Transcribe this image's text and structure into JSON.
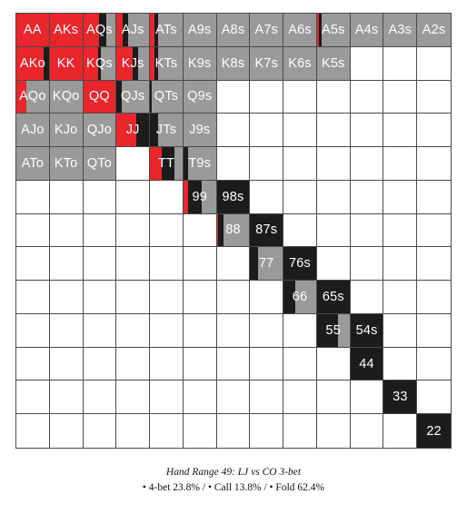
{
  "colors": {
    "raise": "#e8262c",
    "call": "#1c1c1c",
    "fold": "#9a9a9a",
    "empty": "#ffffff"
  },
  "caption": {
    "title": "Hand Range 49: LJ vs CO 3-bet",
    "legend": "• 4-bet 23.8% / • Call 13.8% / • Fold 62.4%"
  },
  "grid": {
    "rows": [
      [
        {
          "label": "AA",
          "raise": 100,
          "call": 0,
          "fold": 0
        },
        {
          "label": "AKs",
          "raise": 100,
          "call": 0,
          "fold": 0
        },
        {
          "label": "AQs",
          "raise": 50,
          "call": 20,
          "fold": 30
        },
        {
          "label": "AJs",
          "raise": 20,
          "call": 15,
          "fold": 65
        },
        {
          "label": "ATs",
          "raise": 15,
          "call": 10,
          "fold": 75
        },
        {
          "label": "A9s",
          "raise": 0,
          "call": 0,
          "fold": 100
        },
        {
          "label": "A8s",
          "raise": 0,
          "call": 0,
          "fold": 100
        },
        {
          "label": "A7s",
          "raise": 0,
          "call": 0,
          "fold": 100
        },
        {
          "label": "A6s",
          "raise": 0,
          "call": 0,
          "fold": 100
        },
        {
          "label": "A5s",
          "raise": 6,
          "call": 8,
          "fold": 86
        },
        {
          "label": "A4s",
          "raise": 0,
          "call": 0,
          "fold": 100
        },
        {
          "label": "A3s",
          "raise": 0,
          "call": 0,
          "fold": 100
        },
        {
          "label": "A2s",
          "raise": 0,
          "call": 0,
          "fold": 100
        }
      ],
      [
        {
          "label": "AKo",
          "raise": 85,
          "call": 15,
          "fold": 0
        },
        {
          "label": "KK",
          "raise": 100,
          "call": 0,
          "fold": 0
        },
        {
          "label": "KQs",
          "raise": 45,
          "call": 10,
          "fold": 45
        },
        {
          "label": "KJs",
          "raise": 50,
          "call": 15,
          "fold": 35
        },
        {
          "label": "KTs",
          "raise": 15,
          "call": 10,
          "fold": 75
        },
        {
          "label": "K9s",
          "raise": 0,
          "call": 0,
          "fold": 100
        },
        {
          "label": "K8s",
          "raise": 0,
          "call": 0,
          "fold": 100
        },
        {
          "label": "K7s",
          "raise": 0,
          "call": 0,
          "fold": 100
        },
        {
          "label": "K6s",
          "raise": 0,
          "call": 0,
          "fold": 100
        },
        {
          "label": "K5s",
          "raise": 0,
          "call": 0,
          "fold": 100
        },
        {
          "label": "",
          "raise": 0,
          "call": 0,
          "fold": 0
        },
        {
          "label": "",
          "raise": 0,
          "call": 0,
          "fold": 0
        },
        {
          "label": "",
          "raise": 0,
          "call": 0,
          "fold": 0
        }
      ],
      [
        {
          "label": "AQo",
          "raise": 30,
          "call": 0,
          "fold": 70
        },
        {
          "label": "KQo",
          "raise": 0,
          "call": 0,
          "fold": 100
        },
        {
          "label": "QQ",
          "raise": 100,
          "call": 0,
          "fold": 0
        },
        {
          "label": "QJs",
          "raise": 0,
          "call": 15,
          "fold": 85
        },
        {
          "label": "QTs",
          "raise": 0,
          "call": 5,
          "fold": 95
        },
        {
          "label": "Q9s",
          "raise": 0,
          "call": 0,
          "fold": 100
        },
        {
          "label": "",
          "raise": 0,
          "call": 0,
          "fold": 0
        },
        {
          "label": "",
          "raise": 0,
          "call": 0,
          "fold": 0
        },
        {
          "label": "",
          "raise": 0,
          "call": 0,
          "fold": 0
        },
        {
          "label": "",
          "raise": 0,
          "call": 0,
          "fold": 0
        },
        {
          "label": "",
          "raise": 0,
          "call": 0,
          "fold": 0
        },
        {
          "label": "",
          "raise": 0,
          "call": 0,
          "fold": 0
        },
        {
          "label": "",
          "raise": 0,
          "call": 0,
          "fold": 0
        }
      ],
      [
        {
          "label": "AJo",
          "raise": 0,
          "call": 0,
          "fold": 100
        },
        {
          "label": "KJo",
          "raise": 0,
          "call": 0,
          "fold": 100
        },
        {
          "label": "QJo",
          "raise": 0,
          "call": 0,
          "fold": 100
        },
        {
          "label": "JJ",
          "raise": 60,
          "call": 40,
          "fold": 0
        },
        {
          "label": "JTs",
          "raise": 0,
          "call": 25,
          "fold": 75
        },
        {
          "label": "J9s",
          "raise": 0,
          "call": 0,
          "fold": 100
        },
        {
          "label": "",
          "raise": 0,
          "call": 0,
          "fold": 0
        },
        {
          "label": "",
          "raise": 0,
          "call": 0,
          "fold": 0
        },
        {
          "label": "",
          "raise": 0,
          "call": 0,
          "fold": 0
        },
        {
          "label": "",
          "raise": 0,
          "call": 0,
          "fold": 0
        },
        {
          "label": "",
          "raise": 0,
          "call": 0,
          "fold": 0
        },
        {
          "label": "",
          "raise": 0,
          "call": 0,
          "fold": 0
        },
        {
          "label": "",
          "raise": 0,
          "call": 0,
          "fold": 0
        }
      ],
      [
        {
          "label": "ATo",
          "raise": 0,
          "call": 0,
          "fold": 100
        },
        {
          "label": "KTo",
          "raise": 0,
          "call": 0,
          "fold": 100
        },
        {
          "label": "QTo",
          "raise": 0,
          "call": 0,
          "fold": 100
        },
        {
          "label": "",
          "raise": 0,
          "call": 0,
          "fold": 0
        },
        {
          "label": "TT",
          "raise": 35,
          "call": 40,
          "fold": 25
        },
        {
          "label": "T9s",
          "raise": 0,
          "call": 15,
          "fold": 85
        },
        {
          "label": "",
          "raise": 0,
          "call": 0,
          "fold": 0
        },
        {
          "label": "",
          "raise": 0,
          "call": 0,
          "fold": 0
        },
        {
          "label": "",
          "raise": 0,
          "call": 0,
          "fold": 0
        },
        {
          "label": "",
          "raise": 0,
          "call": 0,
          "fold": 0
        },
        {
          "label": "",
          "raise": 0,
          "call": 0,
          "fold": 0
        },
        {
          "label": "",
          "raise": 0,
          "call": 0,
          "fold": 0
        },
        {
          "label": "",
          "raise": 0,
          "call": 0,
          "fold": 0
        }
      ],
      [
        {
          "label": "",
          "raise": 0,
          "call": 0,
          "fold": 0
        },
        {
          "label": "",
          "raise": 0,
          "call": 0,
          "fold": 0
        },
        {
          "label": "",
          "raise": 0,
          "call": 0,
          "fold": 0
        },
        {
          "label": "",
          "raise": 0,
          "call": 0,
          "fold": 0
        },
        {
          "label": "",
          "raise": 0,
          "call": 0,
          "fold": 0
        },
        {
          "label": "99",
          "raise": 15,
          "call": 40,
          "fold": 45
        },
        {
          "label": "98s",
          "raise": 0,
          "call": 100,
          "fold": 0
        },
        {
          "label": "",
          "raise": 0,
          "call": 0,
          "fold": 0
        },
        {
          "label": "",
          "raise": 0,
          "call": 0,
          "fold": 0
        },
        {
          "label": "",
          "raise": 0,
          "call": 0,
          "fold": 0
        },
        {
          "label": "",
          "raise": 0,
          "call": 0,
          "fold": 0
        },
        {
          "label": "",
          "raise": 0,
          "call": 0,
          "fold": 0
        },
        {
          "label": "",
          "raise": 0,
          "call": 0,
          "fold": 0
        }
      ],
      [
        {
          "label": "",
          "raise": 0,
          "call": 0,
          "fold": 0
        },
        {
          "label": "",
          "raise": 0,
          "call": 0,
          "fold": 0
        },
        {
          "label": "",
          "raise": 0,
          "call": 0,
          "fold": 0
        },
        {
          "label": "",
          "raise": 0,
          "call": 0,
          "fold": 0
        },
        {
          "label": "",
          "raise": 0,
          "call": 0,
          "fold": 0
        },
        {
          "label": "",
          "raise": 0,
          "call": 0,
          "fold": 0
        },
        {
          "label": "88",
          "raise": 5,
          "call": 15,
          "fold": 80
        },
        {
          "label": "87s",
          "raise": 0,
          "call": 100,
          "fold": 0
        },
        {
          "label": "",
          "raise": 0,
          "call": 0,
          "fold": 0
        },
        {
          "label": "",
          "raise": 0,
          "call": 0,
          "fold": 0
        },
        {
          "label": "",
          "raise": 0,
          "call": 0,
          "fold": 0
        },
        {
          "label": "",
          "raise": 0,
          "call": 0,
          "fold": 0
        },
        {
          "label": "",
          "raise": 0,
          "call": 0,
          "fold": 0
        }
      ],
      [
        {
          "label": "",
          "raise": 0,
          "call": 0,
          "fold": 0
        },
        {
          "label": "",
          "raise": 0,
          "call": 0,
          "fold": 0
        },
        {
          "label": "",
          "raise": 0,
          "call": 0,
          "fold": 0
        },
        {
          "label": "",
          "raise": 0,
          "call": 0,
          "fold": 0
        },
        {
          "label": "",
          "raise": 0,
          "call": 0,
          "fold": 0
        },
        {
          "label": "",
          "raise": 0,
          "call": 0,
          "fold": 0
        },
        {
          "label": "",
          "raise": 0,
          "call": 0,
          "fold": 0
        },
        {
          "label": "77",
          "raise": 0,
          "call": 25,
          "fold": 75
        },
        {
          "label": "76s",
          "raise": 0,
          "call": 100,
          "fold": 0
        },
        {
          "label": "",
          "raise": 0,
          "call": 0,
          "fold": 0
        },
        {
          "label": "",
          "raise": 0,
          "call": 0,
          "fold": 0
        },
        {
          "label": "",
          "raise": 0,
          "call": 0,
          "fold": 0
        },
        {
          "label": "",
          "raise": 0,
          "call": 0,
          "fold": 0
        }
      ],
      [
        {
          "label": "",
          "raise": 0,
          "call": 0,
          "fold": 0
        },
        {
          "label": "",
          "raise": 0,
          "call": 0,
          "fold": 0
        },
        {
          "label": "",
          "raise": 0,
          "call": 0,
          "fold": 0
        },
        {
          "label": "",
          "raise": 0,
          "call": 0,
          "fold": 0
        },
        {
          "label": "",
          "raise": 0,
          "call": 0,
          "fold": 0
        },
        {
          "label": "",
          "raise": 0,
          "call": 0,
          "fold": 0
        },
        {
          "label": "",
          "raise": 0,
          "call": 0,
          "fold": 0
        },
        {
          "label": "",
          "raise": 0,
          "call": 0,
          "fold": 0
        },
        {
          "label": "66",
          "raise": 0,
          "call": 35,
          "fold": 65
        },
        {
          "label": "65s",
          "raise": 0,
          "call": 100,
          "fold": 0
        },
        {
          "label": "",
          "raise": 0,
          "call": 0,
          "fold": 0
        },
        {
          "label": "",
          "raise": 0,
          "call": 0,
          "fold": 0
        },
        {
          "label": "",
          "raise": 0,
          "call": 0,
          "fold": 0
        }
      ],
      [
        {
          "label": "",
          "raise": 0,
          "call": 0,
          "fold": 0
        },
        {
          "label": "",
          "raise": 0,
          "call": 0,
          "fold": 0
        },
        {
          "label": "",
          "raise": 0,
          "call": 0,
          "fold": 0
        },
        {
          "label": "",
          "raise": 0,
          "call": 0,
          "fold": 0
        },
        {
          "label": "",
          "raise": 0,
          "call": 0,
          "fold": 0
        },
        {
          "label": "",
          "raise": 0,
          "call": 0,
          "fold": 0
        },
        {
          "label": "",
          "raise": 0,
          "call": 0,
          "fold": 0
        },
        {
          "label": "",
          "raise": 0,
          "call": 0,
          "fold": 0
        },
        {
          "label": "",
          "raise": 0,
          "call": 0,
          "fold": 0
        },
        {
          "label": "55",
          "raise": 0,
          "call": 65,
          "fold": 35
        },
        {
          "label": "54s",
          "raise": 0,
          "call": 100,
          "fold": 0
        },
        {
          "label": "",
          "raise": 0,
          "call": 0,
          "fold": 0
        },
        {
          "label": "",
          "raise": 0,
          "call": 0,
          "fold": 0
        }
      ],
      [
        {
          "label": "",
          "raise": 0,
          "call": 0,
          "fold": 0
        },
        {
          "label": "",
          "raise": 0,
          "call": 0,
          "fold": 0
        },
        {
          "label": "",
          "raise": 0,
          "call": 0,
          "fold": 0
        },
        {
          "label": "",
          "raise": 0,
          "call": 0,
          "fold": 0
        },
        {
          "label": "",
          "raise": 0,
          "call": 0,
          "fold": 0
        },
        {
          "label": "",
          "raise": 0,
          "call": 0,
          "fold": 0
        },
        {
          "label": "",
          "raise": 0,
          "call": 0,
          "fold": 0
        },
        {
          "label": "",
          "raise": 0,
          "call": 0,
          "fold": 0
        },
        {
          "label": "",
          "raise": 0,
          "call": 0,
          "fold": 0
        },
        {
          "label": "",
          "raise": 0,
          "call": 0,
          "fold": 0
        },
        {
          "label": "44",
          "raise": 0,
          "call": 100,
          "fold": 0
        },
        {
          "label": "",
          "raise": 0,
          "call": 0,
          "fold": 0
        },
        {
          "label": "",
          "raise": 0,
          "call": 0,
          "fold": 0
        }
      ],
      [
        {
          "label": "",
          "raise": 0,
          "call": 0,
          "fold": 0
        },
        {
          "label": "",
          "raise": 0,
          "call": 0,
          "fold": 0
        },
        {
          "label": "",
          "raise": 0,
          "call": 0,
          "fold": 0
        },
        {
          "label": "",
          "raise": 0,
          "call": 0,
          "fold": 0
        },
        {
          "label": "",
          "raise": 0,
          "call": 0,
          "fold": 0
        },
        {
          "label": "",
          "raise": 0,
          "call": 0,
          "fold": 0
        },
        {
          "label": "",
          "raise": 0,
          "call": 0,
          "fold": 0
        },
        {
          "label": "",
          "raise": 0,
          "call": 0,
          "fold": 0
        },
        {
          "label": "",
          "raise": 0,
          "call": 0,
          "fold": 0
        },
        {
          "label": "",
          "raise": 0,
          "call": 0,
          "fold": 0
        },
        {
          "label": "",
          "raise": 0,
          "call": 0,
          "fold": 0
        },
        {
          "label": "33",
          "raise": 0,
          "call": 100,
          "fold": 0
        },
        {
          "label": "",
          "raise": 0,
          "call": 0,
          "fold": 0
        }
      ],
      [
        {
          "label": "",
          "raise": 0,
          "call": 0,
          "fold": 0
        },
        {
          "label": "",
          "raise": 0,
          "call": 0,
          "fold": 0
        },
        {
          "label": "",
          "raise": 0,
          "call": 0,
          "fold": 0
        },
        {
          "label": "",
          "raise": 0,
          "call": 0,
          "fold": 0
        },
        {
          "label": "",
          "raise": 0,
          "call": 0,
          "fold": 0
        },
        {
          "label": "",
          "raise": 0,
          "call": 0,
          "fold": 0
        },
        {
          "label": "",
          "raise": 0,
          "call": 0,
          "fold": 0
        },
        {
          "label": "",
          "raise": 0,
          "call": 0,
          "fold": 0
        },
        {
          "label": "",
          "raise": 0,
          "call": 0,
          "fold": 0
        },
        {
          "label": "",
          "raise": 0,
          "call": 0,
          "fold": 0
        },
        {
          "label": "",
          "raise": 0,
          "call": 0,
          "fold": 0
        },
        {
          "label": "",
          "raise": 0,
          "call": 0,
          "fold": 0
        },
        {
          "label": "22",
          "raise": 0,
          "call": 100,
          "fold": 0
        }
      ]
    ]
  }
}
